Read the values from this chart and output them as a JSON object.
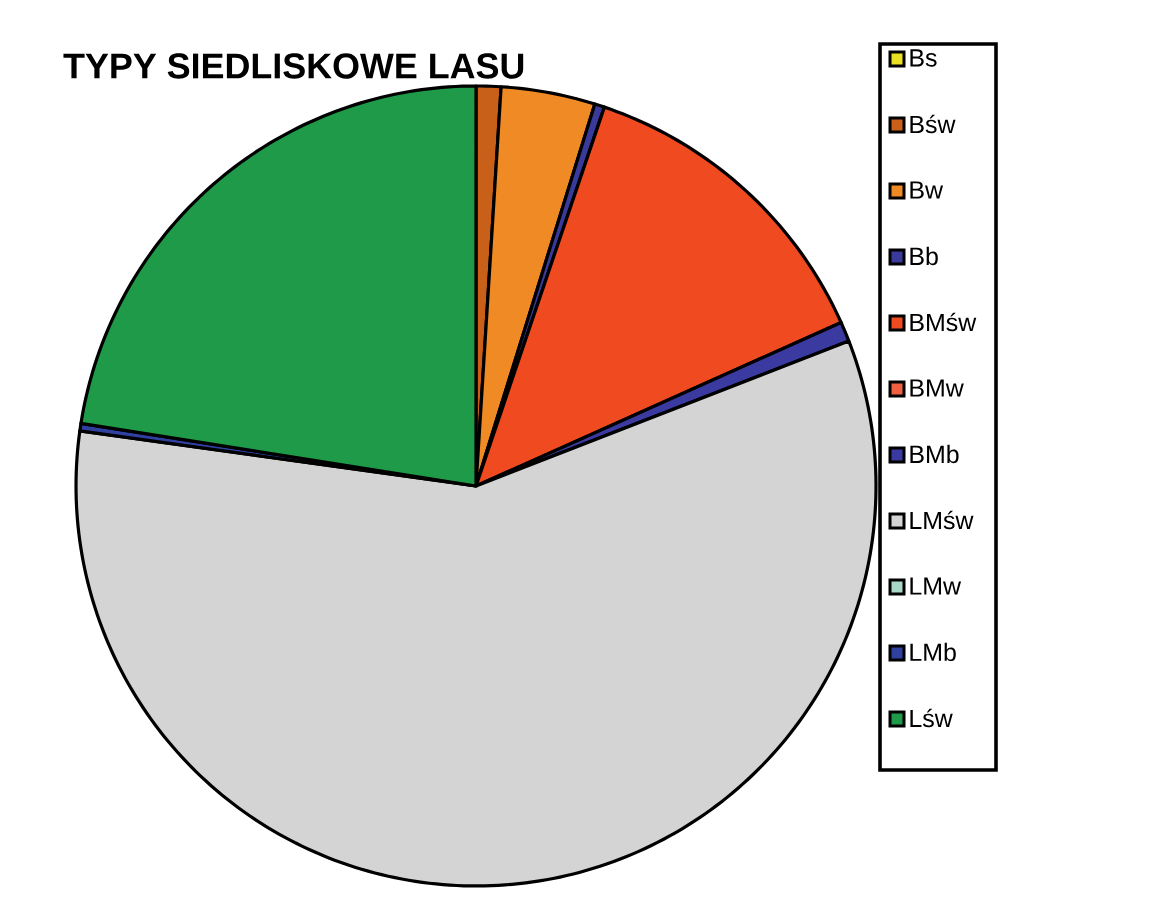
{
  "chart_data": {
    "type": "pie",
    "title": "TYPY SIEDLISKOWE LASU",
    "categories": [
      "Bs",
      "Bśw",
      "Bw",
      "Bb",
      "BMśw",
      "BMw",
      "BMb",
      "LMśw",
      "LMw",
      "LMb",
      "Lśw"
    ],
    "values": [
      null,
      1.0,
      3.8,
      0.4,
      13.1,
      null,
      0.8,
      58.1,
      null,
      0.3,
      22.5
    ],
    "colors": [
      "#e8e020",
      "#c8601a",
      "#f08a24",
      "#3a3a9a",
      "#f04a20",
      "#f06040",
      "#3a3aa0",
      "#d4d4d4",
      "#a8d8c8",
      "#3040a0",
      "#1e9a48"
    ],
    "legend": "right"
  }
}
